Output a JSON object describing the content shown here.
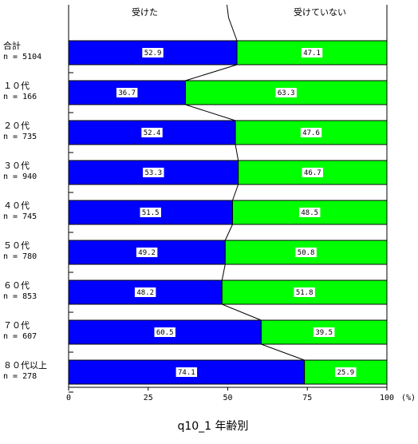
{
  "chart_data": {
    "type": "bar",
    "stacked": true,
    "orientation": "horizontal",
    "title": "q10_1 年齢別",
    "legend": [
      "受けた",
      "受けていない"
    ],
    "legend_placement": "top",
    "categories": [
      "合計",
      "１０代",
      "２０代",
      "３０代",
      "４０代",
      "５０代",
      "６０代",
      "７０代",
      "８０代以上"
    ],
    "n_labels": [
      "n = 5104",
      "n = 166",
      "n = 735",
      "n = 940",
      "n = 745",
      "n = 780",
      "n = 853",
      "n = 607",
      "n = 278"
    ],
    "series": [
      {
        "name": "受けた",
        "color": "#0000ff",
        "values": [
          52.9,
          36.7,
          52.4,
          53.3,
          51.5,
          49.2,
          48.2,
          60.5,
          74.1
        ],
        "labels": [
          "52.9",
          "36.7",
          "52.4",
          "53.3",
          "51.5",
          "49.2",
          "48.2",
          "60.5",
          "74.1"
        ]
      },
      {
        "name": "受けていない",
        "color": "#00ff00",
        "values": [
          47.1,
          63.3,
          47.6,
          46.7,
          48.5,
          50.8,
          51.8,
          39.5,
          25.9
        ],
        "labels": [
          "47.1",
          "63.3",
          "47.6",
          "46.7",
          "48.5",
          "50.8",
          "51.8",
          "39.5",
          "25.9"
        ]
      }
    ],
    "xlim": [
      0,
      100
    ],
    "x_ticks": [
      "0",
      "25",
      "50",
      "75",
      "100"
    ],
    "x_unit": "(%)",
    "grid": false
  }
}
